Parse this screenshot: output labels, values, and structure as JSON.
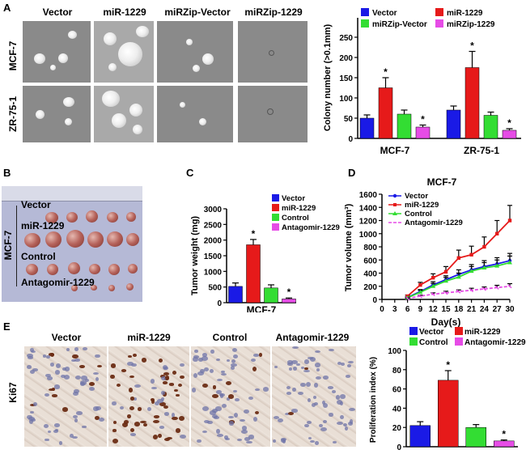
{
  "panels": {
    "A": {
      "letter": "A",
      "columns": [
        "Vector",
        "miR-1229",
        "miRZip-Vector",
        "miRZip-1229"
      ],
      "rows": [
        "MCF-7",
        "ZR-75-1"
      ]
    },
    "B": {
      "letter": "B",
      "side_label": "MCF-7",
      "group_labels": [
        "Vector",
        "miR-1229",
        "Control",
        "Antagomir-1229"
      ]
    },
    "C": {
      "letter": "C"
    },
    "D": {
      "letter": "D"
    },
    "E": {
      "letter": "E",
      "columns": [
        "Vector",
        "miR-1229",
        "Control",
        "Antagomir-1229"
      ],
      "row_label": "Ki67"
    }
  },
  "colors": {
    "vector": "#1a1ae6",
    "mir1229": "#e61a1a",
    "control": "#33dd33",
    "inhibitor": "#e64ce6"
  },
  "chart_data": [
    {
      "id": "A",
      "type": "bar",
      "categories": [
        "MCF-7",
        "ZR-75-1"
      ],
      "series": [
        {
          "name": "Vector",
          "values": [
            50,
            70
          ],
          "errors": [
            8,
            10
          ]
        },
        {
          "name": "miR-1229",
          "values": [
            125,
            175
          ],
          "errors": [
            25,
            40
          ]
        },
        {
          "name": "miRZip-Vector",
          "values": [
            60,
            57
          ],
          "errors": [
            10,
            8
          ]
        },
        {
          "name": "miRZip-1229",
          "values": [
            28,
            20
          ],
          "errors": [
            5,
            4
          ]
        }
      ],
      "significance": [
        [
          "",
          "*",
          "",
          "*"
        ],
        [
          "",
          "*",
          "",
          "*"
        ]
      ],
      "ylabel": "Colony number (>0.1mm)",
      "ylim": [
        0,
        250
      ],
      "yticks": [
        "0",
        "50",
        "100",
        "150",
        "200",
        "250"
      ],
      "legend": "top"
    },
    {
      "id": "C",
      "type": "bar",
      "categories": [
        "Vector",
        "miR-1229",
        "Control",
        "Antagomir-1229"
      ],
      "values": [
        520,
        1850,
        470,
        120
      ],
      "errors": [
        110,
        170,
        100,
        30
      ],
      "significance": [
        "",
        "*",
        "",
        "*"
      ],
      "xlabel": "MCF-7",
      "ylabel": "Tumor weight (mg)",
      "ylim": [
        0,
        3000
      ],
      "yticks": [
        "0",
        "500",
        "1000",
        "1500",
        "2000",
        "2500",
        "3000"
      ],
      "legend": "top-right"
    },
    {
      "id": "D",
      "type": "line",
      "title": "MCF-7",
      "x": [
        6,
        9,
        12,
        15,
        18,
        21,
        24,
        27,
        30
      ],
      "series": [
        {
          "name": "Vector",
          "values": [
            30,
            120,
            220,
            300,
            380,
            450,
            500,
            540,
            590
          ],
          "errors": [
            10,
            30,
            50,
            60,
            70,
            80,
            90,
            95,
            110
          ]
        },
        {
          "name": "miR-1229",
          "values": [
            50,
            220,
            330,
            420,
            630,
            680,
            800,
            1000,
            1200
          ],
          "errors": [
            15,
            40,
            60,
            80,
            120,
            130,
            150,
            200,
            230
          ]
        },
        {
          "name": "Control",
          "values": [
            25,
            110,
            200,
            280,
            340,
            430,
            480,
            510,
            560
          ],
          "errors": [
            10,
            30,
            45,
            55,
            60,
            70,
            80,
            90,
            100
          ]
        },
        {
          "name": "Antagomir-1229",
          "values": [
            15,
            50,
            80,
            100,
            120,
            140,
            160,
            180,
            200
          ],
          "errors": [
            5,
            15,
            20,
            25,
            25,
            30,
            30,
            35,
            40
          ]
        }
      ],
      "xlabel": "Day(s)",
      "ylabel": "Tumor volume (mm³)",
      "xlim": [
        0,
        30
      ],
      "xticks": [
        "0",
        "3",
        "6",
        "9",
        "12",
        "15",
        "18",
        "21",
        "24",
        "27",
        "30"
      ],
      "ylim": [
        0,
        1600
      ],
      "yticks": [
        "0",
        "200",
        "400",
        "600",
        "800",
        "1000",
        "1200",
        "1400",
        "1600"
      ],
      "legend": "top-left"
    },
    {
      "id": "E",
      "type": "bar",
      "categories": [
        "Vector",
        "miR-1229",
        "Control",
        "Antagomir-1229"
      ],
      "values": [
        22,
        69,
        20,
        6
      ],
      "errors": [
        4,
        10,
        3,
        1
      ],
      "significance": [
        "",
        "*",
        "",
        "*"
      ],
      "ylabel": "Proliferation index (%)",
      "ylim": [
        0,
        100
      ],
      "yticks": [
        "0",
        "20",
        "40",
        "60",
        "80",
        "100"
      ],
      "legend": "top"
    }
  ]
}
